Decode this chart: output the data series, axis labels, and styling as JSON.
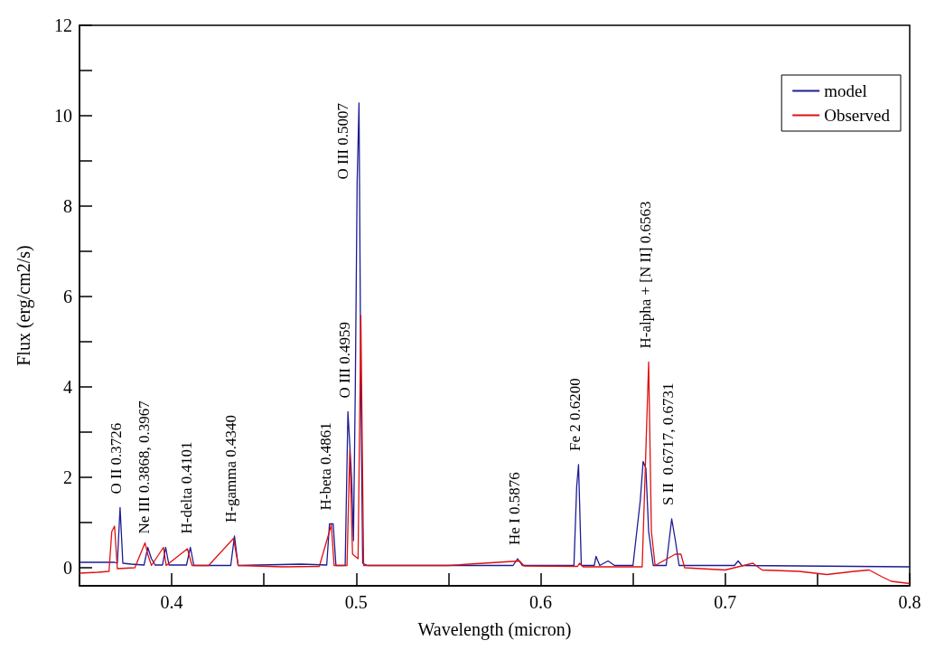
{
  "chart_data": {
    "type": "line",
    "xlabel": "Wavelength (micron)",
    "ylabel": "Flux (erg/cm2/s)",
    "xlim": [
      0.35,
      0.8
    ],
    "ylim": [
      -0.4,
      12
    ],
    "xticks": [
      0.4,
      {
        "value": 0.45,
        "label": null
      },
      0.5,
      {
        "value": 0.55,
        "label": null
      },
      0.6,
      {
        "value": 0.65,
        "label": null
      },
      0.7,
      {
        "value": 0.75,
        "label": null
      },
      0.8
    ],
    "yticks": [
      0,
      {
        "value": 1,
        "label": null
      },
      2,
      {
        "value": 3,
        "label": null
      },
      4,
      {
        "value": 5,
        "label": null
      },
      6,
      {
        "value": 7,
        "label": null
      },
      8,
      {
        "value": 9,
        "label": null
      },
      10,
      {
        "value": 11,
        "label": null
      },
      12
    ],
    "legend": "top right",
    "series": [
      {
        "name": "model",
        "color": "#1c1c96",
        "x": [
          0.35,
          0.365,
          0.369,
          0.3705,
          0.372,
          0.3735,
          0.378,
          0.385,
          0.387,
          0.389,
          0.391,
          0.395,
          0.3967,
          0.3985,
          0.408,
          0.4101,
          0.412,
          0.432,
          0.434,
          0.436,
          0.47,
          0.484,
          0.4855,
          0.4875,
          0.489,
          0.494,
          0.4955,
          0.4975,
          0.4985,
          0.4995,
          0.5005,
          0.5015,
          0.5025,
          0.5035,
          0.506,
          0.585,
          0.5875,
          0.59,
          0.618,
          0.6195,
          0.6205,
          0.622,
          0.629,
          0.63,
          0.632,
          0.6365,
          0.64,
          0.65,
          0.654,
          0.6555,
          0.657,
          0.6585,
          0.661,
          0.668,
          0.671,
          0.673,
          0.675,
          0.705,
          0.707,
          0.709,
          0.8
        ],
        "values": [
          0.12,
          0.12,
          0.12,
          0.1,
          1.33,
          0.1,
          0.08,
          0.06,
          0.45,
          0.2,
          0.06,
          0.06,
          0.45,
          0.06,
          0.06,
          0.45,
          0.05,
          0.05,
          0.7,
          0.05,
          0.08,
          0.06,
          0.97,
          0.97,
          0.05,
          0.05,
          3.45,
          2.0,
          0.6,
          4.0,
          8.55,
          10.28,
          4.0,
          0.1,
          0.05,
          0.05,
          0.2,
          0.05,
          0.05,
          1.8,
          2.28,
          0.05,
          0.05,
          0.25,
          0.05,
          0.15,
          0.05,
          0.05,
          1.5,
          2.35,
          2.2,
          0.8,
          0.05,
          0.05,
          1.08,
          0.6,
          0.05,
          0.05,
          0.15,
          0.05,
          0.02
        ]
      },
      {
        "name": "Observed",
        "color": "#e01010",
        "x": [
          0.35,
          0.36,
          0.366,
          0.3675,
          0.369,
          0.3705,
          0.38,
          0.3855,
          0.387,
          0.389,
          0.3955,
          0.397,
          0.4085,
          0.411,
          0.42,
          0.4335,
          0.436,
          0.46,
          0.48,
          0.4865,
          0.488,
          0.495,
          0.4965,
          0.498,
          0.501,
          0.5025,
          0.504,
          0.55,
          0.5885,
          0.591,
          0.62,
          0.621,
          0.623,
          0.655,
          0.6585,
          0.66,
          0.662,
          0.673,
          0.676,
          0.678,
          0.7,
          0.715,
          0.72,
          0.74,
          0.755,
          0.77,
          0.778,
          0.785,
          0.79,
          0.8
        ],
        "values": [
          -0.12,
          -0.1,
          -0.08,
          0.8,
          0.92,
          -0.02,
          0.0,
          0.55,
          0.3,
          0.05,
          0.45,
          0.05,
          0.42,
          0.05,
          0.05,
          0.65,
          0.05,
          0.02,
          0.03,
          0.95,
          0.05,
          0.05,
          2.6,
          0.3,
          0.2,
          5.58,
          0.05,
          0.05,
          0.15,
          0.04,
          0.03,
          0.1,
          0.02,
          0.02,
          4.55,
          0.8,
          0.05,
          0.3,
          0.3,
          0.0,
          -0.05,
          0.1,
          -0.05,
          -0.08,
          -0.15,
          -0.08,
          -0.05,
          -0.2,
          -0.3,
          -0.35
        ]
      }
    ],
    "annotations": [
      {
        "text": "O II 0.3726",
        "x": 0.372,
        "y": 1.33
      },
      {
        "text": "Ne III 0.3868, 0.3967",
        "x": 0.387,
        "y": 0.45
      },
      {
        "text": "H-delta 0.4101",
        "x": 0.4101,
        "y": 0.45
      },
      {
        "text": "H-gamma 0.4340",
        "x": 0.434,
        "y": 0.7
      },
      {
        "text": "H-beta 0.4861",
        "x": 0.4855,
        "y": 0.97
      },
      {
        "text": "O III 0.4959",
        "x": 0.4955,
        "y": 3.45
      },
      {
        "text": "O III 0.5007",
        "x": 0.5015,
        "y": 10.28
      },
      {
        "text": "He I 0.5876",
        "x": 0.5875,
        "y": 0.2
      },
      {
        "text": "Fe 2 0.6200",
        "x": 0.6205,
        "y": 2.28
      },
      {
        "text": "H-alpha + [N II] 0.6563",
        "x": 0.6585,
        "y": 4.55
      },
      {
        "text": "S II  0.6717, 0.6731",
        "x": 0.671,
        "y": 1.08
      }
    ]
  }
}
